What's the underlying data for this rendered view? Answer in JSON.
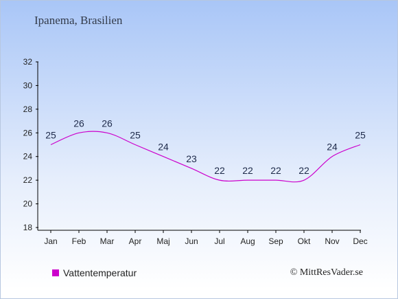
{
  "location": "Ipanema, Brasilien",
  "legend": {
    "label": "Vattentemperatur",
    "color": "#cc00cc"
  },
  "copyright": "© MittResVader.se",
  "chart_data": {
    "type": "line",
    "title": "Ipanema, Brasilien",
    "categories": [
      "Jan",
      "Feb",
      "Mar",
      "Apr",
      "Maj",
      "Jun",
      "Jul",
      "Aug",
      "Sep",
      "Okt",
      "Nov",
      "Dec"
    ],
    "series": [
      {
        "name": "Vattentemperatur",
        "color": "#cc00cc",
        "values": [
          25,
          26,
          26,
          25,
          24,
          23,
          22,
          22,
          22,
          22,
          24,
          25
        ]
      }
    ],
    "yticks": [
      18,
      20,
      22,
      24,
      26,
      28,
      30,
      32
    ],
    "ylim": [
      18,
      32
    ],
    "grid": false,
    "legend_position": "bottom-left"
  }
}
